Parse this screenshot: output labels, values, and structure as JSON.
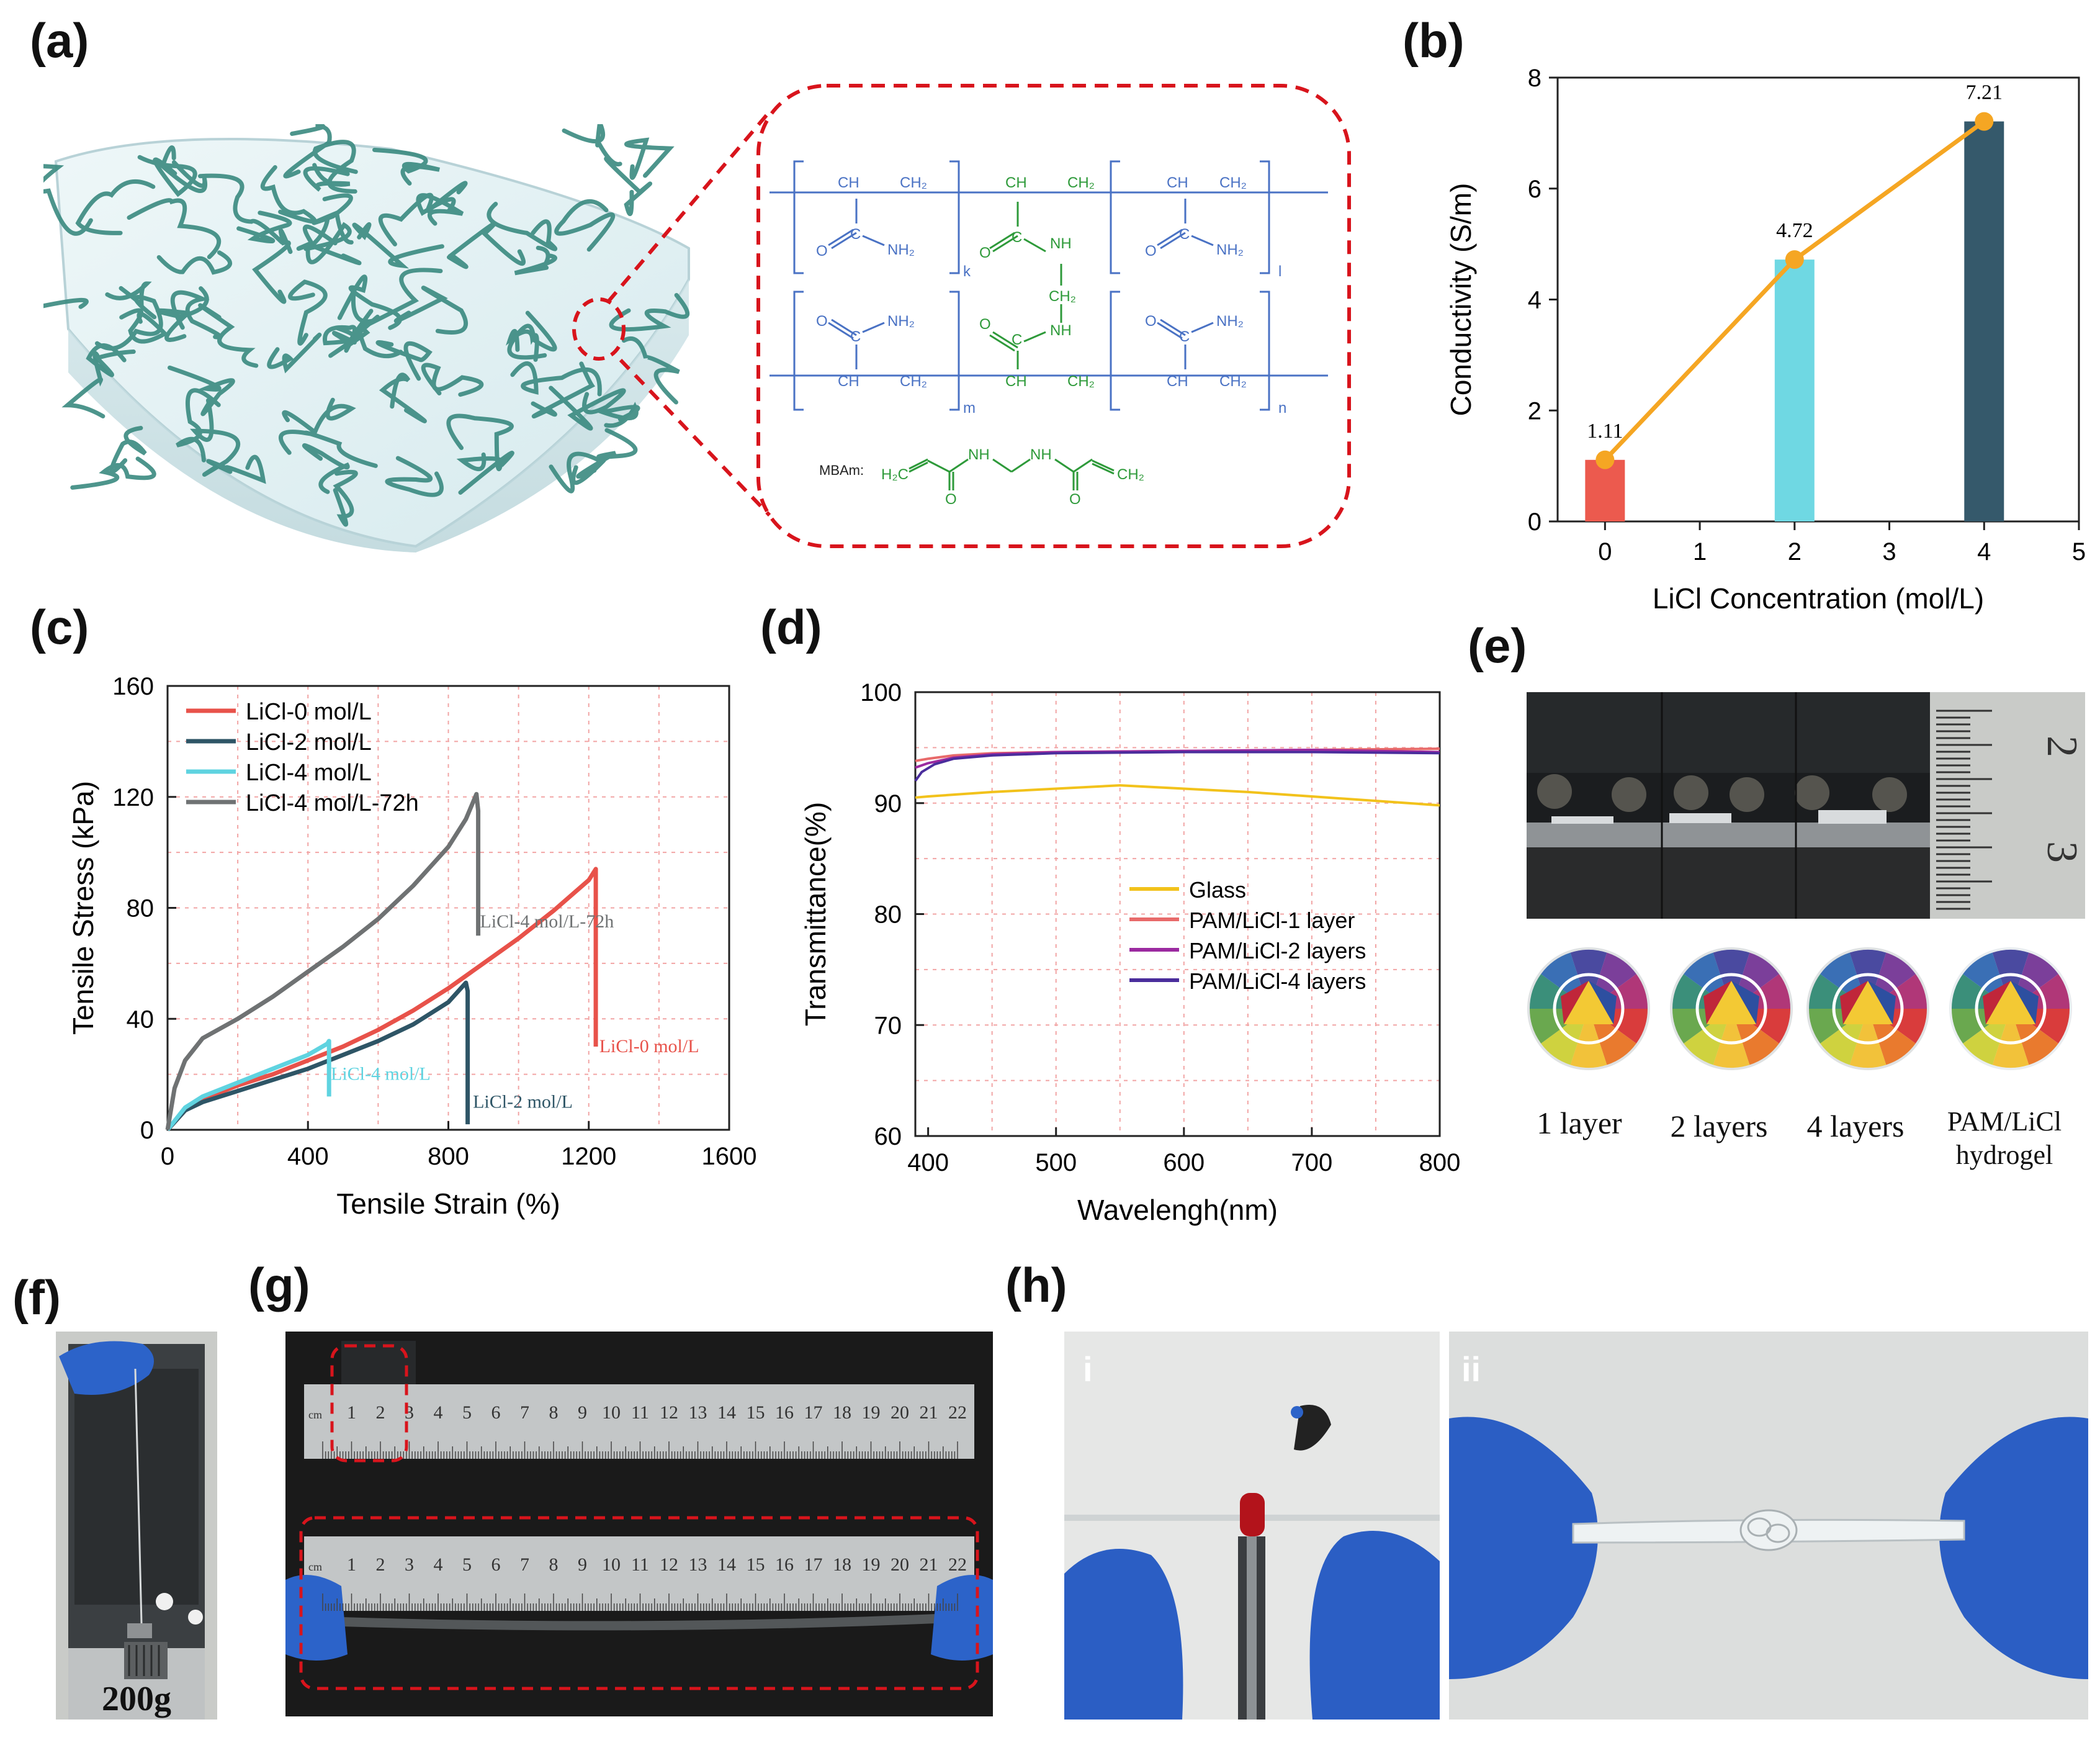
{
  "panels": {
    "a": "(a)",
    "b": "(b)",
    "c": "(c)",
    "d": "(d)",
    "e": "(e)",
    "f": "(f)",
    "g": "(g)",
    "h": "(h)"
  },
  "structure": {
    "ch": "CH",
    "ch2": "CH₂",
    "c": "C",
    "o": "O",
    "nh": "NH",
    "nh2": "NH₂",
    "k": "k",
    "l": "l",
    "m": "m",
    "n": "n",
    "mbam_label": "MBAm:",
    "h2c": "H₂C",
    "mbam_ch2": "CH₂"
  },
  "photos": {
    "e_captions": [
      "1 layer",
      "2 layers",
      "4 layers",
      "PAM/LiCl hydrogel"
    ],
    "e_ruler_marks": [
      "2",
      "3"
    ],
    "f_weight": "200g",
    "g_ruler_numbers": [
      "cm",
      "1",
      "2",
      "3",
      "4",
      "5",
      "6",
      "7",
      "8",
      "9",
      "10",
      "11",
      "12",
      "13",
      "14",
      "15",
      "16",
      "17",
      "18",
      "19",
      "20",
      "21",
      "22"
    ],
    "h_sub": [
      "i",
      "ii"
    ]
  },
  "colors": {
    "red_line": "#e8524a",
    "dark_teal": "#2e5566",
    "light_cyan": "#5fd3e0",
    "gray": "#6f7273",
    "orange": "#f5a623",
    "dashed_red": "#d8141c",
    "gel_green": "#3a8a80"
  },
  "chart_data": [
    {
      "panel": "b",
      "type": "bar",
      "x": [
        0,
        2,
        4
      ],
      "values": [
        1.11,
        4.72,
        7.21
      ],
      "value_labels": [
        "1.11",
        "4.72",
        "7.21"
      ],
      "bar_colors": [
        "#ec5a4e",
        "#6fd8e3",
        "#35596b"
      ],
      "overlay_line": {
        "x": [
          0,
          2,
          4
        ],
        "y": [
          1.11,
          4.72,
          7.21
        ],
        "color": "#f5a623"
      },
      "xlabel": "LiCl Concentration (mol/L)",
      "ylabel": "Conductivity (S/m)",
      "xlim": [
        -0.5,
        5
      ],
      "ylim": [
        0,
        8
      ],
      "xticks": [
        "0",
        "1",
        "2",
        "3",
        "4",
        "5"
      ],
      "yticks": [
        "0",
        "2",
        "4",
        "6",
        "8"
      ]
    },
    {
      "panel": "c",
      "type": "line",
      "xlabel": "Tensile Strain (%)",
      "ylabel": "Tensile Stress (kPa)",
      "xlim": [
        0,
        1600
      ],
      "ylim": [
        0,
        160
      ],
      "xticks": [
        "0",
        "400",
        "800",
        "1200",
        "1600"
      ],
      "yticks": [
        "0",
        "40",
        "80",
        "120",
        "160"
      ],
      "grid": true,
      "legend": "top-left",
      "series": [
        {
          "name": "LiCl-0 mol/L",
          "color": "#e8524a",
          "x": [
            0,
            50,
            100,
            200,
            300,
            400,
            500,
            600,
            700,
            800,
            900,
            1000,
            1100,
            1200,
            1220,
            1220
          ],
          "y": [
            0,
            7,
            11,
            16,
            20,
            25,
            30,
            36,
            43,
            51,
            60,
            69,
            79,
            90,
            94,
            30
          ],
          "end_label": "LiCl-0 mol/L"
        },
        {
          "name": "LiCl-2 mol/L",
          "color": "#2e5566",
          "x": [
            0,
            50,
            100,
            200,
            300,
            400,
            500,
            600,
            700,
            800,
            850,
            855,
            855
          ],
          "y": [
            0,
            7,
            10,
            14,
            18,
            22,
            27,
            32,
            38,
            46,
            53,
            50,
            2
          ],
          "end_label": "LiCl-2 mol/L"
        },
        {
          "name": "LiCl-4 mol/L",
          "color": "#5fd3e0",
          "x": [
            0,
            50,
            100,
            200,
            300,
            400,
            455,
            460,
            460
          ],
          "y": [
            0,
            8,
            12,
            17,
            22,
            27,
            31,
            32,
            12
          ],
          "end_label": "LiCl-4 mol/L"
        },
        {
          "name": "LiCl-4 mol/L-72h",
          "color": "#6f7273",
          "x": [
            0,
            20,
            50,
            100,
            200,
            300,
            400,
            500,
            600,
            700,
            800,
            850,
            880,
            885,
            885
          ],
          "y": [
            0,
            15,
            25,
            33,
            40,
            48,
            57,
            66,
            76,
            88,
            102,
            112,
            121,
            115,
            70
          ],
          "end_label": "LiCl-4 mol/L-72h"
        }
      ]
    },
    {
      "panel": "d",
      "type": "line",
      "xlabel": "Wavelengh(nm)",
      "ylabel": "Transmittance(%)",
      "xlim": [
        390,
        800
      ],
      "ylim": [
        60,
        100
      ],
      "xticks": [
        "400",
        "500",
        "600",
        "700",
        "800"
      ],
      "yticks": [
        "60",
        "70",
        "80",
        "90",
        "100"
      ],
      "grid": true,
      "legend": "center-right",
      "series": [
        {
          "name": "Glass",
          "color": "#f2c21b",
          "x": [
            390,
            400,
            450,
            500,
            550,
            600,
            650,
            700,
            750,
            800
          ],
          "y": [
            90.5,
            90.6,
            91.0,
            91.3,
            91.6,
            91.3,
            91.0,
            90.6,
            90.2,
            89.8
          ]
        },
        {
          "name": "PAM/LiCl-1 layer",
          "color": "#e86a6a",
          "x": [
            390,
            400,
            420,
            450,
            500,
            600,
            700,
            800
          ],
          "y": [
            93.8,
            94.0,
            94.3,
            94.5,
            94.6,
            94.7,
            94.8,
            94.9
          ]
        },
        {
          "name": "PAM/LiCl-2 layers",
          "color": "#9b2aa0",
          "x": [
            390,
            400,
            420,
            450,
            500,
            600,
            700,
            800
          ],
          "y": [
            93.2,
            93.6,
            94.1,
            94.4,
            94.6,
            94.7,
            94.8,
            94.6
          ]
        },
        {
          "name": "PAM/LiCl-4 layers",
          "color": "#4a2d9c",
          "x": [
            390,
            395,
            405,
            420,
            450,
            500,
            600,
            700,
            800
          ],
          "y": [
            92.0,
            92.8,
            93.5,
            94.0,
            94.3,
            94.5,
            94.6,
            94.6,
            94.5
          ]
        }
      ]
    }
  ]
}
